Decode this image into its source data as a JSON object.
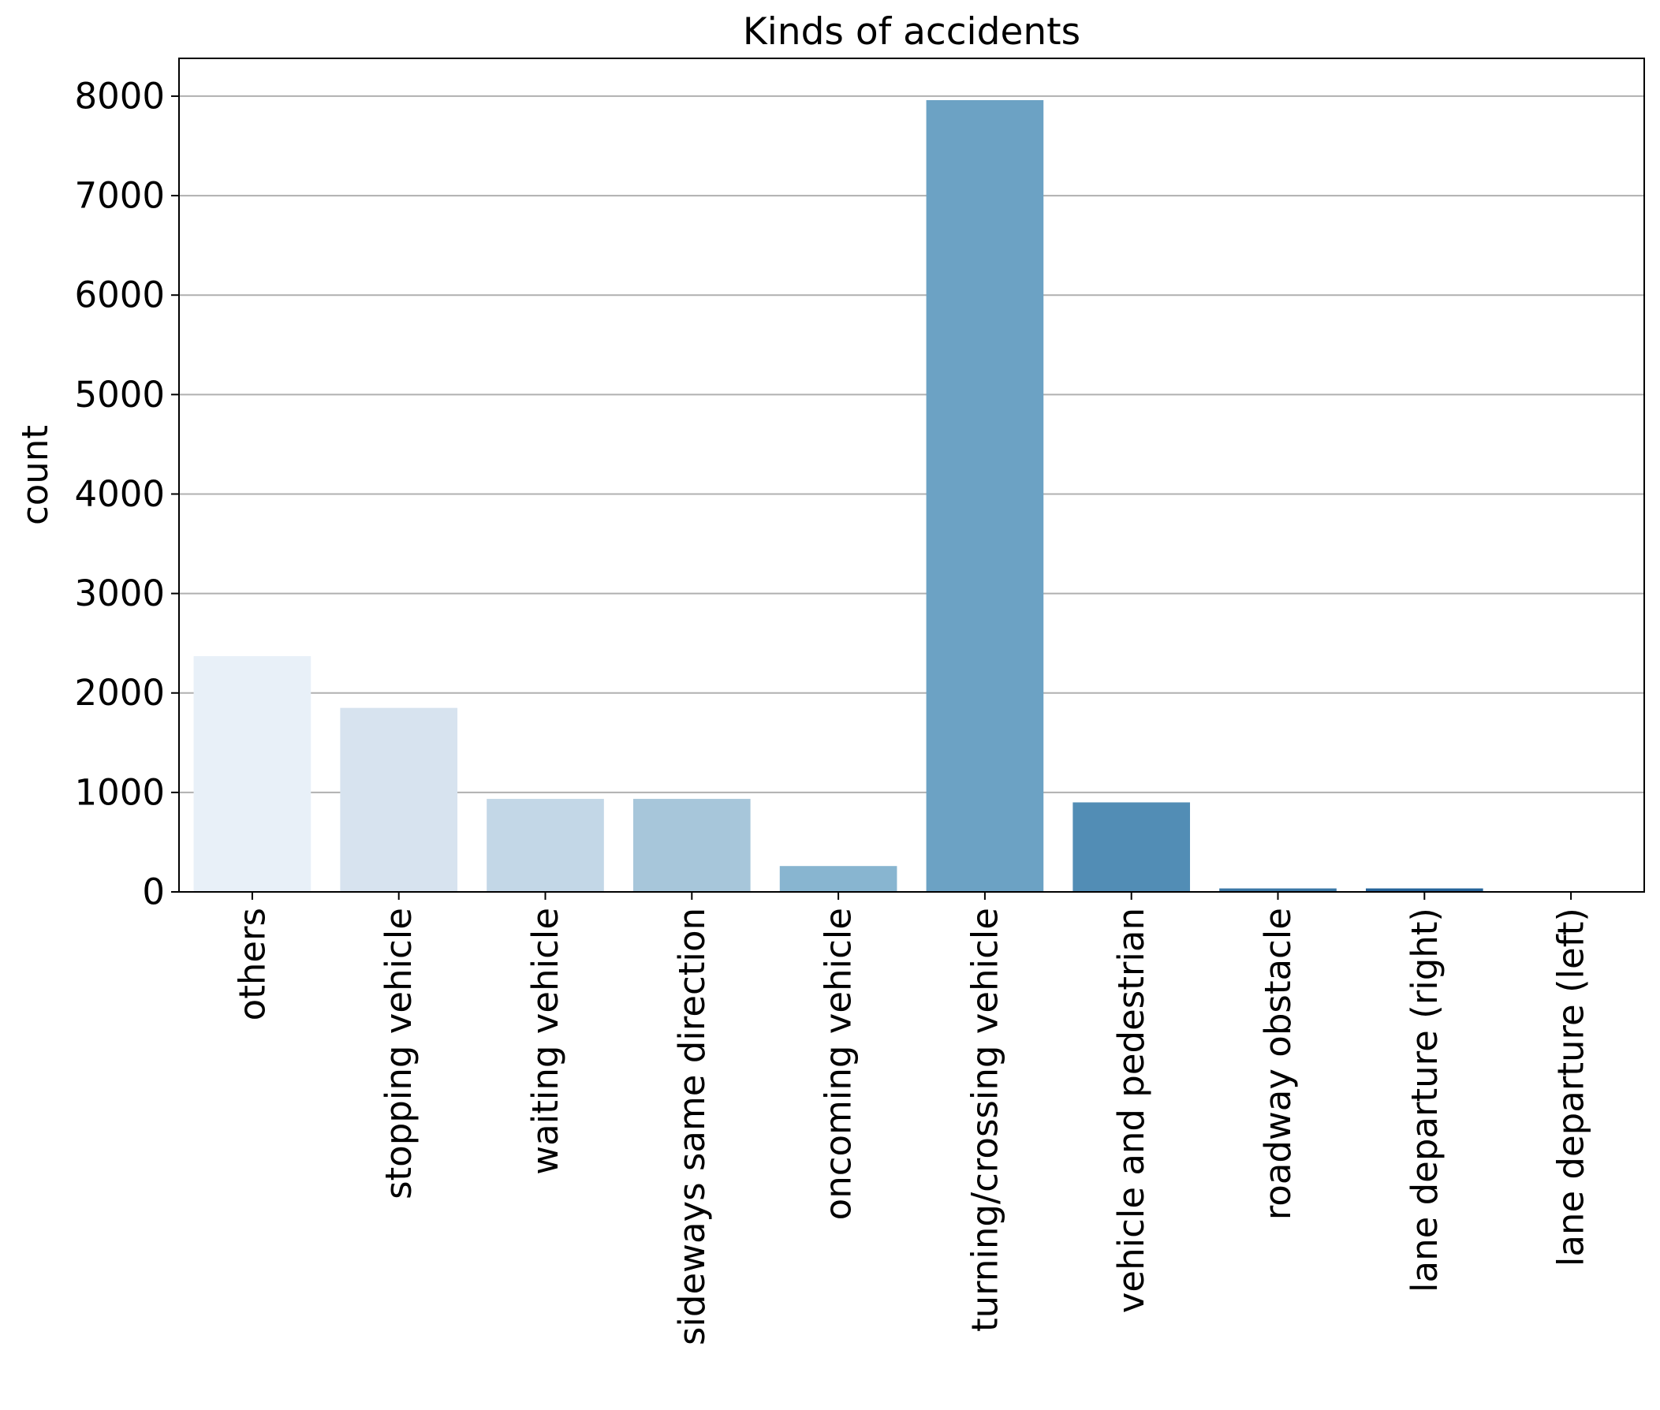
{
  "chart_data": {
    "type": "bar",
    "title": "Kinds of accidents",
    "xlabel": "",
    "ylabel": "count",
    "categories": [
      "others",
      "stopping vehicle",
      "waiting vehicle",
      "sideways same direction",
      "oncoming vehicle",
      "turning/crossing vehicle",
      "vehicle and pedestrian",
      "roadway obstacle",
      "lane departure (right)",
      "lane departure (left)"
    ],
    "values": [
      2370,
      1850,
      935,
      935,
      260,
      7960,
      900,
      35,
      35,
      8
    ],
    "colors": [
      "#e8f0f8",
      "#d7e3ef",
      "#c3d7e7",
      "#a7c6da",
      "#88b5d0",
      "#6ca2c4",
      "#528db5",
      "#3b78a6",
      "#26649a",
      "#175290"
    ],
    "ylim": [
      0,
      8380
    ],
    "yticks": [
      0,
      1000,
      2000,
      3000,
      4000,
      5000,
      6000,
      7000,
      8000
    ],
    "grid": true,
    "grid_axis": "y",
    "legend": false
  }
}
